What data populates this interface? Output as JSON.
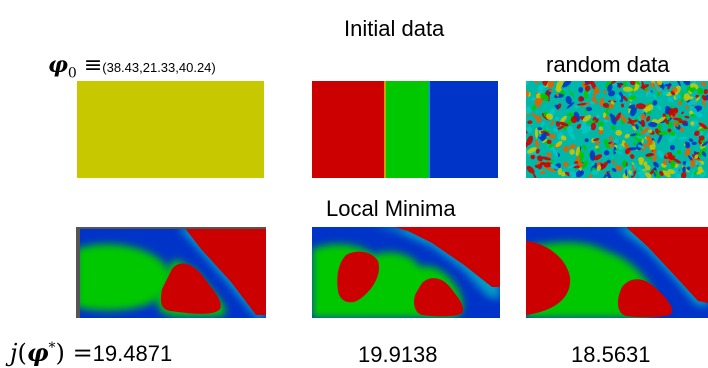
{
  "headings": {
    "initial": "Initial data",
    "random": "random data",
    "local": "Local Minima"
  },
  "phi0": {
    "symbol": "φ",
    "subscript": "0",
    "equiv": "≡",
    "values": "(38.43,21.33,40.24)"
  },
  "objective": {
    "j": "j",
    "open": "(",
    "phi": "φ",
    "star": "*",
    "close": ")",
    "eq": "=",
    "values": [
      "19.4871",
      "19.9138",
      "18.5631"
    ]
  },
  "colors": {
    "yellow": "#c8c800",
    "red": "#cc0000",
    "green": "#00c800",
    "blue": "#0033c8",
    "cyan": "#00c8c8"
  }
}
